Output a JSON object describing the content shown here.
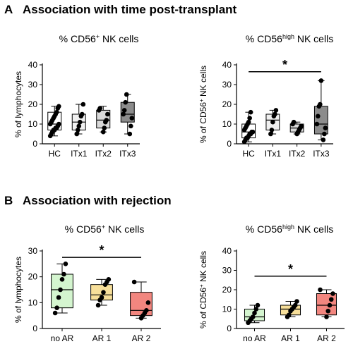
{
  "sections": [
    {
      "letter": "A",
      "title": "Association with time post-transplant"
    },
    {
      "letter": "B",
      "title": "Association with rejection"
    }
  ],
  "chart_data": [
    {
      "type": "box",
      "title": "% CD56⁺ NK cells",
      "title_parts": {
        "main": "% CD56",
        "sup": "+",
        "rest": " NK cells"
      },
      "ylabel": "% of lymphocytes",
      "ylabel_parts": {
        "main": "% of lymphocytes",
        "sup": "",
        "rest": ""
      },
      "ylim": [
        0,
        40
      ],
      "yticks": [
        0,
        10,
        20,
        30,
        40
      ],
      "categories": [
        "HC",
        "ITx1",
        "ITx2",
        "ITx3"
      ],
      "boxes": [
        {
          "category": "HC",
          "min": 4,
          "q1": 7,
          "median": 10,
          "q3": 16,
          "max": 19,
          "fill": "#ffffff",
          "points": [
            4,
            5,
            6,
            7,
            7,
            8,
            8,
            9,
            10,
            10,
            11,
            12,
            13,
            14,
            15,
            16,
            18,
            19
          ]
        },
        {
          "category": "ITx1",
          "min": 5,
          "q1": 7,
          "median": 11,
          "q3": 15,
          "max": 20,
          "fill": "#f0f0f0",
          "points": [
            5,
            7,
            9,
            11,
            14,
            15,
            20
          ]
        },
        {
          "category": "ITx2",
          "min": 6,
          "q1": 8,
          "median": 12,
          "q3": 17,
          "max": 19,
          "fill": "#d9d9d9",
          "points": [
            6,
            8,
            11,
            12,
            15,
            17,
            18
          ]
        },
        {
          "category": "ITx3",
          "min": 5,
          "q1": 11,
          "median": 15,
          "q3": 21,
          "max": 25,
          "fill": "#8c8c8c",
          "points": [
            5,
            9,
            13,
            15,
            17,
            21,
            25
          ]
        }
      ],
      "significance": null
    },
    {
      "type": "box",
      "title": "% CD56high NK cells",
      "title_parts": {
        "main": "% CD56",
        "sup": "high",
        "rest": " NK cells"
      },
      "ylabel": "% of CD56⁺ NK cells",
      "ylabel_parts": {
        "main": "% of CD56",
        "sup": "+",
        "rest": " NK cells"
      },
      "ylim": [
        0,
        40
      ],
      "yticks": [
        0,
        10,
        20,
        30,
        40
      ],
      "categories": [
        "HC",
        "ITx1",
        "ITx2",
        "ITx3"
      ],
      "boxes": [
        {
          "category": "HC",
          "min": 1,
          "q1": 3,
          "median": 6,
          "q3": 10,
          "max": 16,
          "fill": "#ffffff",
          "points": [
            1,
            2,
            3,
            3,
            4,
            5,
            5,
            6,
            6,
            7,
            8,
            9,
            10,
            11,
            13,
            16
          ]
        },
        {
          "category": "ITx1",
          "min": 5,
          "q1": 7,
          "median": 12,
          "q3": 15,
          "max": 17,
          "fill": "#f0f0f0",
          "points": [
            5,
            7,
            11,
            14,
            15,
            17
          ]
        },
        {
          "category": "ITx2",
          "min": 5,
          "q1": 6,
          "median": 8,
          "q3": 10,
          "max": 11,
          "fill": "#d9d9d9",
          "points": [
            5,
            6,
            7,
            8,
            9,
            10,
            11
          ]
        },
        {
          "category": "ITx3",
          "min": 2,
          "q1": 5,
          "median": 10,
          "q3": 19,
          "max": 32,
          "fill": "#8c8c8c",
          "points": [
            2,
            5,
            8,
            10,
            14,
            19,
            20,
            32
          ]
        }
      ],
      "significance": {
        "from": "HC",
        "to": "ITx3",
        "y": 36.5,
        "label": "*"
      }
    },
    {
      "type": "box",
      "title": "% CD56⁺ NK cells",
      "title_parts": {
        "main": "% CD56",
        "sup": "+",
        "rest": " NK cells"
      },
      "ylabel": "% of lymphocytes",
      "ylabel_parts": {
        "main": "% of lymphocytes",
        "sup": "",
        "rest": ""
      },
      "ylim": [
        0,
        30
      ],
      "yticks": [
        0,
        10,
        20,
        30
      ],
      "categories": [
        "no AR",
        "AR 1",
        "AR 2"
      ],
      "boxes": [
        {
          "category": "no AR",
          "min": 6,
          "q1": 8,
          "median": 15,
          "q3": 21,
          "max": 25,
          "fill": "#d4f5cf",
          "points": [
            6,
            8,
            12,
            15,
            19,
            21,
            25
          ]
        },
        {
          "category": "AR 1",
          "min": 9,
          "q1": 11,
          "median": 13,
          "q3": 17,
          "max": 19,
          "fill": "#f7df9a",
          "points": [
            9,
            11,
            12,
            14,
            17,
            18,
            19
          ]
        },
        {
          "category": "AR 2",
          "min": 4,
          "q1": 5,
          "median": 7,
          "q3": 14,
          "max": 18,
          "fill": "#f2867f",
          "points": [
            4,
            5,
            6,
            7,
            10,
            18
          ]
        }
      ],
      "significance": {
        "from": "no AR",
        "to": "AR 2",
        "y": 27.5,
        "label": "*"
      }
    },
    {
      "type": "box",
      "title": "% CD56high NK cells",
      "title_parts": {
        "main": "% CD56",
        "sup": "high",
        "rest": " NK cells"
      },
      "ylabel": "% of CD56⁺ NK cells",
      "ylabel_parts": {
        "main": "% of CD56",
        "sup": "+",
        "rest": " NK cells"
      },
      "ylim": [
        0,
        40
      ],
      "yticks": [
        0,
        10,
        20,
        30,
        40
      ],
      "categories": [
        "no AR",
        "AR 1",
        "AR 2"
      ],
      "boxes": [
        {
          "category": "no AR",
          "min": 3,
          "q1": 4,
          "median": 6,
          "q3": 10,
          "max": 12,
          "fill": "#d4f5cf",
          "points": [
            3,
            4,
            5,
            6,
            8,
            10,
            12
          ]
        },
        {
          "category": "AR 1",
          "min": 6,
          "q1": 7,
          "median": 10,
          "q3": 12,
          "max": 14,
          "fill": "#f7df9a",
          "points": [
            6,
            7,
            9,
            10,
            11,
            12,
            14
          ]
        },
        {
          "category": "AR 2",
          "min": 6,
          "q1": 7,
          "median": 12,
          "q3": 18,
          "max": 20,
          "fill": "#f2867f",
          "points": [
            6,
            9,
            12,
            15,
            18,
            20
          ]
        }
      ],
      "significance": {
        "from": "no AR",
        "to": "AR 2",
        "y": 27,
        "label": "*"
      }
    }
  ]
}
